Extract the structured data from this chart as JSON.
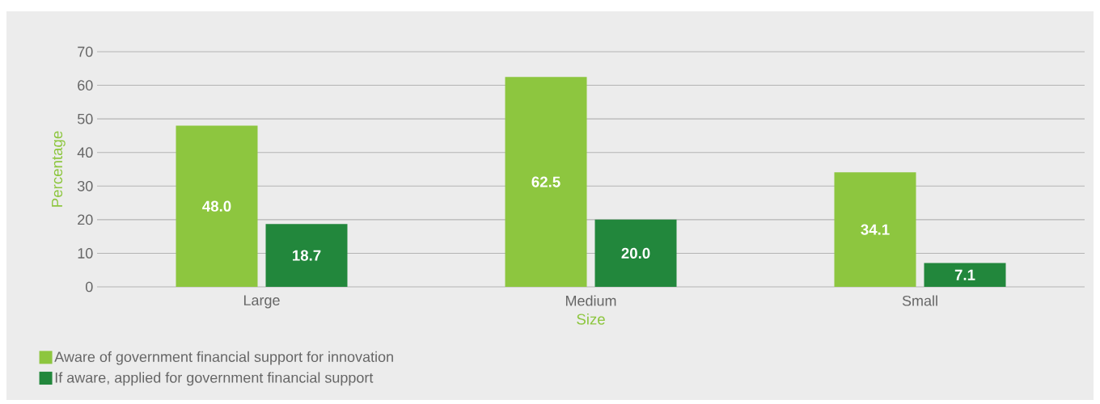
{
  "chart_data": {
    "type": "bar",
    "xlabel": "Size",
    "ylabel": "Percentage",
    "categories": [
      "Large",
      "Medium",
      "Small"
    ],
    "series": [
      {
        "name": "Aware of government financial support for innovation",
        "color": "#8dc63f",
        "values": [
          48.0,
          62.5,
          34.1
        ],
        "value_labels": [
          "48.0",
          "62.5",
          "34.1"
        ]
      },
      {
        "name": "If aware, applied for government financial support",
        "color": "#22873c",
        "values": [
          18.7,
          20.0,
          7.1
        ],
        "value_labels": [
          "18.7",
          "20.0",
          "7.1"
        ]
      }
    ],
    "ylim": [
      0,
      70
    ],
    "yticks": [
      0,
      10,
      20,
      30,
      40,
      50,
      60,
      70
    ],
    "grid": "y",
    "legend": "bottom left"
  }
}
